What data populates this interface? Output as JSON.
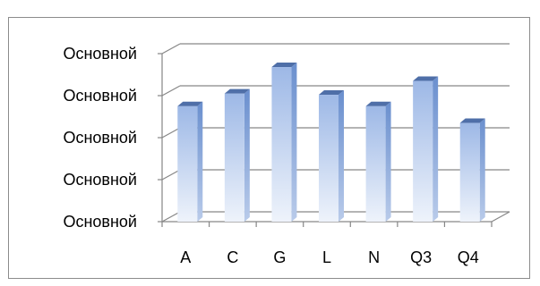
{
  "chart_data": {
    "type": "bar",
    "style": "3d-column",
    "categories": [
      "A",
      "C",
      "G",
      "L",
      "N",
      "Q3",
      "Q4"
    ],
    "values": [
      2.75,
      3.05,
      3.68,
      3.02,
      2.75,
      3.35,
      2.35
    ],
    "ylim": [
      0,
      4
    ],
    "y_tick_labels": [
      "Основной",
      "Основной",
      "Основной",
      "Основной",
      "Основной"
    ],
    "title": "",
    "xlabel": "",
    "ylabel": "",
    "grid": true,
    "legend": "none",
    "colors": {
      "bar_top": "#9db8e6",
      "bar_bottom": "#eef3fb",
      "bar_side": "#6a8fce",
      "bar_cap": "#4f6fa8",
      "grid": "#868686",
      "axis": "#868686"
    }
  }
}
